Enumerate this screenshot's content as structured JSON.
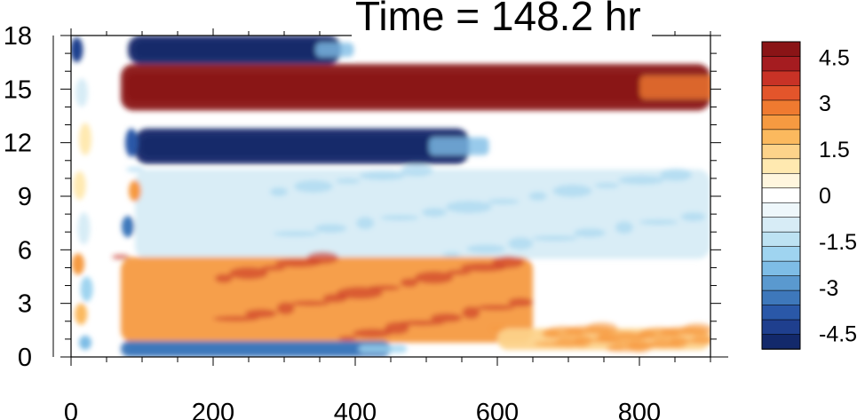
{
  "chart_data": {
    "type": "heatmap",
    "title": "Time = 148.2 hr",
    "xlabel": "",
    "ylabel": "",
    "xlim": [
      0,
      900
    ],
    "ylim": [
      0,
      18
    ],
    "x_ticks": [
      0,
      200,
      400,
      600,
      800
    ],
    "y_ticks": [
      0,
      3,
      6,
      9,
      12,
      15,
      18
    ],
    "colorbar": {
      "levels": [
        -5,
        -4.5,
        -4,
        -3.5,
        -3,
        -2.5,
        -2,
        -1.5,
        -1,
        -0.5,
        0,
        0.5,
        1,
        1.5,
        2,
        2.5,
        3,
        3.5,
        4,
        4.5,
        5
      ],
      "tick_labels": [
        "4.5",
        "3",
        "1.5",
        "0",
        "-1.5",
        "-3",
        "-4.5"
      ],
      "tick_values": [
        4.5,
        3,
        1.5,
        0,
        -1.5,
        -3,
        -4.5
      ],
      "colors": [
        "#13296b",
        "#1f3f8e",
        "#2a58a8",
        "#3e78bb",
        "#5a99cf",
        "#7ebde6",
        "#9fd4f0",
        "#bde2f2",
        "#d7ecf6",
        "#eef7fb",
        "#ffffff",
        "#fff6de",
        "#ffe9b0",
        "#fdd38a",
        "#fbb95e",
        "#f69a41",
        "#ef7a30",
        "#e3552b",
        "#c83226",
        "#a51c20",
        "#8a1416"
      ]
    },
    "features": [
      {
        "name": "upper negative band",
        "y_range": [
          16.4,
          18
        ],
        "x_range": [
          80,
          380
        ],
        "value": -5
      },
      {
        "name": "strong positive band",
        "y_range": [
          13.8,
          16.4
        ],
        "x_range": [
          70,
          900
        ],
        "value": 5
      },
      {
        "name": "strong negative band",
        "y_range": [
          10.8,
          12.8
        ],
        "x_range": [
          90,
          560
        ],
        "value": -5
      },
      {
        "name": "weak negative region",
        "y_range": [
          5.5,
          10.5
        ],
        "x_range": [
          90,
          900
        ],
        "value": -1.2
      },
      {
        "name": "positive band",
        "y_range": [
          0.8,
          5.6
        ],
        "x_range": [
          70,
          650
        ],
        "value": 2.5
      },
      {
        "name": "near-surface negative band",
        "y_range": [
          0,
          0.9
        ],
        "x_range": [
          70,
          450
        ],
        "value": -3.5
      },
      {
        "name": "near-surface positive band",
        "y_range": [
          0.4,
          1.6
        ],
        "x_range": [
          600,
          900
        ],
        "value": 1.5
      }
    ]
  }
}
